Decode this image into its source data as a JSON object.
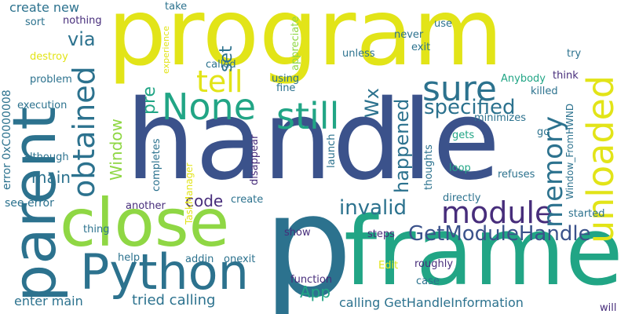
{
  "words": [
    {
      "id": "program",
      "text": "program",
      "color": "#e2e418",
      "vertical": false
    },
    {
      "id": "handle",
      "text": "handle",
      "color": "#3b528b",
      "vertical": false
    },
    {
      "id": "p",
      "text": "p",
      "color": "#2c728e",
      "vertical": false
    },
    {
      "id": "frame",
      "text": "frame",
      "color": "#21a585",
      "vertical": false
    },
    {
      "id": "parent",
      "text": "parent",
      "color": "#2c728e",
      "vertical": true
    },
    {
      "id": "close",
      "text": "close",
      "color": "#8fd744",
      "vertical": false
    },
    {
      "id": "python",
      "text": "Python",
      "color": "#2c728e",
      "vertical": false
    },
    {
      "id": "unloaded",
      "text": "unloaded",
      "color": "#e2e418",
      "vertical": true
    },
    {
      "id": "none",
      "text": "None",
      "color": "#21a585",
      "vertical": false
    },
    {
      "id": "still",
      "text": "still",
      "color": "#21a585",
      "vertical": false
    },
    {
      "id": "sure",
      "text": "sure",
      "color": "#2c728e",
      "vertical": false
    },
    {
      "id": "tell",
      "text": "tell",
      "color": "#e2e418",
      "vertical": false
    },
    {
      "id": "obtained",
      "text": "obtained",
      "color": "#2c728e",
      "vertical": true
    },
    {
      "id": "module",
      "text": "module",
      "color": "#472d7b",
      "vertical": false
    },
    {
      "id": "memory",
      "text": "memory",
      "color": "#2c728e",
      "vertical": true
    },
    {
      "id": "getmodulehandle",
      "text": "GetModuleHandle",
      "color": "#3b528b",
      "vertical": false
    },
    {
      "id": "invalid",
      "text": "invalid",
      "color": "#2c728e",
      "vertical": false
    },
    {
      "id": "specified",
      "text": "specified",
      "color": "#2c728e",
      "vertical": false
    },
    {
      "id": "happened",
      "text": "happened",
      "color": "#2c728e",
      "vertical": true
    },
    {
      "id": "wx",
      "text": "Wx",
      "color": "#2c728e",
      "vertical": true
    },
    {
      "id": "via",
      "text": "via",
      "color": "#2c728e",
      "vertical": false
    },
    {
      "id": "pre",
      "text": "pre",
      "color": "#21a585",
      "vertical": true
    },
    {
      "id": "set",
      "text": "set",
      "color": "#2c728e",
      "vertical": true
    },
    {
      "id": "window",
      "text": "Window",
      "color": "#8fd744",
      "vertical": true
    },
    {
      "id": "main",
      "text": "main",
      "color": "#2c728e",
      "vertical": false
    },
    {
      "id": "code",
      "text": "code",
      "color": "#472d7b",
      "vertical": false
    },
    {
      "id": "app",
      "text": "App",
      "color": "#21a585",
      "vertical": false
    },
    {
      "id": "tried-calling",
      "text": "tried calling",
      "color": "#2c728e",
      "vertical": false
    },
    {
      "id": "calling-ghi",
      "text": "calling GetHandleInformation",
      "color": "#2c728e",
      "vertical": false
    },
    {
      "id": "enter-main",
      "text": "enter main",
      "color": "#2c728e",
      "vertical": false
    },
    {
      "id": "create-new",
      "text": "create new",
      "color": "#2c728e",
      "vertical": false
    },
    {
      "id": "see-error",
      "text": "see error",
      "color": "#2c728e",
      "vertical": false
    },
    {
      "id": "error-code",
      "text": "error 0xC0000008",
      "color": "#2c728e",
      "vertical": true
    },
    {
      "id": "nothing",
      "text": "nothing",
      "color": "#472d7b",
      "vertical": false
    },
    {
      "id": "sort",
      "text": "sort",
      "color": "#2c728e",
      "vertical": false
    },
    {
      "id": "destroy",
      "text": "destroy",
      "color": "#e2e418",
      "vertical": false
    },
    {
      "id": "problem",
      "text": "problem",
      "color": "#2c728e",
      "vertical": false
    },
    {
      "id": "execution",
      "text": "execution",
      "color": "#2c728e",
      "vertical": false
    },
    {
      "id": "although",
      "text": "although",
      "color": "#2c728e",
      "vertical": false
    },
    {
      "id": "thing",
      "text": "thing",
      "color": "#2c728e",
      "vertical": false
    },
    {
      "id": "help",
      "text": "help",
      "color": "#2c728e",
      "vertical": false
    },
    {
      "id": "another",
      "text": "another",
      "color": "#472d7b",
      "vertical": false
    },
    {
      "id": "completes",
      "text": "completes",
      "color": "#2c728e",
      "vertical": true
    },
    {
      "id": "taskmanager",
      "text": "TaskManager",
      "color": "#e2e418",
      "vertical": true
    },
    {
      "id": "addin",
      "text": "addin",
      "color": "#2c728e",
      "vertical": false
    },
    {
      "id": "onexit",
      "text": "onexit",
      "color": "#2c728e",
      "vertical": false
    },
    {
      "id": "create",
      "text": "create",
      "color": "#2c728e",
      "vertical": false
    },
    {
      "id": "disappear",
      "text": "disappear",
      "color": "#472d7b",
      "vertical": true
    },
    {
      "id": "show",
      "text": "show",
      "color": "#472d7b",
      "vertical": false
    },
    {
      "id": "function",
      "text": "function",
      "color": "#472d7b",
      "vertical": false
    },
    {
      "id": "launch",
      "text": "launch",
      "color": "#2c728e",
      "vertical": true
    },
    {
      "id": "steps",
      "text": "steps",
      "color": "#472d7b",
      "vertical": false
    },
    {
      "id": "edit",
      "text": "Edit",
      "color": "#e2e418",
      "vertical": false
    },
    {
      "id": "roughly",
      "text": "roughly",
      "color": "#472d7b",
      "vertical": false
    },
    {
      "id": "case",
      "text": "case",
      "color": "#2c728e",
      "vertical": false
    },
    {
      "id": "will",
      "text": "will",
      "color": "#472d7b",
      "vertical": false
    },
    {
      "id": "started",
      "text": "started",
      "color": "#2c728e",
      "vertical": false
    },
    {
      "id": "directly",
      "text": "directly",
      "color": "#2c728e",
      "vertical": false
    },
    {
      "id": "loop",
      "text": "loop",
      "color": "#21a585",
      "vertical": false
    },
    {
      "id": "gets",
      "text": "gets",
      "color": "#21a585",
      "vertical": false
    },
    {
      "id": "refuses",
      "text": "refuses",
      "color": "#2c728e",
      "vertical": false
    },
    {
      "id": "thoughts",
      "text": "thoughts",
      "color": "#2c728e",
      "vertical": true
    },
    {
      "id": "go",
      "text": "go",
      "color": "#2c728e",
      "vertical": false
    },
    {
      "id": "minimizes",
      "text": "minimizes",
      "color": "#2c728e",
      "vertical": false
    },
    {
      "id": "killed",
      "text": "killed",
      "color": "#2c728e",
      "vertical": false
    },
    {
      "id": "think",
      "text": "think",
      "color": "#472d7b",
      "vertical": false
    },
    {
      "id": "anybody",
      "text": "Anybody",
      "color": "#21a585",
      "vertical": false
    },
    {
      "id": "try",
      "text": "try",
      "color": "#2c728e",
      "vertical": false
    },
    {
      "id": "window-fromhwnd",
      "text": "Window_FromHWND",
      "color": "#2c728e",
      "vertical": true
    },
    {
      "id": "use",
      "text": "use",
      "color": "#2c728e",
      "vertical": false
    },
    {
      "id": "exit",
      "text": "exit",
      "color": "#2c728e",
      "vertical": false
    },
    {
      "id": "never",
      "text": "never",
      "color": "#2c728e",
      "vertical": false
    },
    {
      "id": "unless",
      "text": "unless",
      "color": "#2c728e",
      "vertical": false
    },
    {
      "id": "appreciate",
      "text": "appreciate",
      "color": "#8fd744",
      "vertical": true
    },
    {
      "id": "using",
      "text": "using",
      "color": "#2c728e",
      "vertical": false
    },
    {
      "id": "fine",
      "text": "fine",
      "color": "#2c728e",
      "vertical": false
    },
    {
      "id": "called",
      "text": "called",
      "color": "#2c728e",
      "vertical": false
    },
    {
      "id": "take",
      "text": "take",
      "color": "#2c728e",
      "vertical": false
    },
    {
      "id": "experience",
      "text": "experience",
      "color": "#e2e418",
      "vertical": true
    }
  ]
}
